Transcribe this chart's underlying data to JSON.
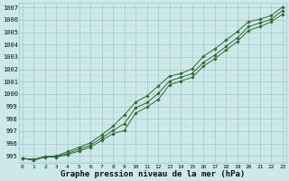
{
  "x": [
    0,
    1,
    2,
    3,
    4,
    5,
    6,
    7,
    8,
    9,
    10,
    11,
    12,
    13,
    14,
    15,
    16,
    17,
    18,
    19,
    20,
    21,
    22,
    23
  ],
  "line_top": [
    994.8,
    994.7,
    994.95,
    995.0,
    995.35,
    995.7,
    996.05,
    996.7,
    997.4,
    998.3,
    999.35,
    999.85,
    1000.65,
    1001.45,
    1001.65,
    1002.05,
    1003.05,
    1003.65,
    1004.35,
    1005.05,
    1005.85,
    1006.05,
    1006.35,
    1007.05
  ],
  "line_mid": [
    994.8,
    994.7,
    994.95,
    994.95,
    995.2,
    995.55,
    995.85,
    996.45,
    997.05,
    997.6,
    998.9,
    999.3,
    1000.05,
    1001.05,
    1001.35,
    1001.65,
    1002.55,
    1003.15,
    1003.85,
    1004.55,
    1005.45,
    1005.75,
    1006.05,
    1006.75
  ],
  "line_bot": [
    994.8,
    994.65,
    994.9,
    994.9,
    995.1,
    995.4,
    995.7,
    996.25,
    996.8,
    997.05,
    998.45,
    998.95,
    999.55,
    1000.75,
    1001.05,
    1001.35,
    1002.25,
    1002.85,
    1003.55,
    1004.25,
    1005.15,
    1005.45,
    1005.85,
    1006.45
  ],
  "line_color": "#2d6a2d",
  "bg_color": "#cce8e8",
  "grid_color_major": "#a0c8c8",
  "grid_color_minor": "#b8d8d8",
  "ylabel_values": [
    995,
    996,
    997,
    998,
    999,
    1000,
    1001,
    1002,
    1003,
    1004,
    1005,
    1006,
    1007
  ],
  "ylim": [
    994.4,
    1007.4
  ],
  "xlim": [
    -0.3,
    23.3
  ],
  "xlabel": "Graphe pression niveau de la mer (hPa)",
  "xlabel_fontsize": 6.5,
  "marker": "D",
  "marker_size": 1.8,
  "linewidth": 0.7
}
